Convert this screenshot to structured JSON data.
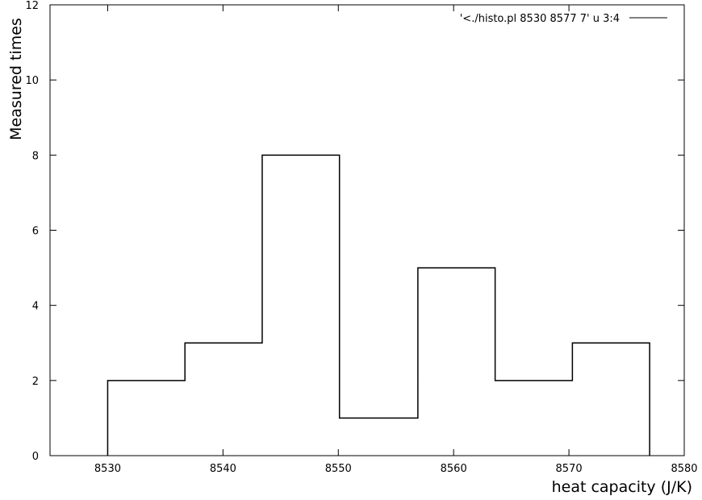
{
  "chart_data": {
    "type": "histogram",
    "xlabel": "heat capacity (J/K)",
    "ylabel": "Measured times",
    "xlim": [
      8525,
      8580
    ],
    "ylim": [
      0,
      12
    ],
    "x_ticks": [
      "8530",
      "8540",
      "8550",
      "8560",
      "8570",
      "8580"
    ],
    "y_ticks": [
      "0",
      "2",
      "4",
      "6",
      "8",
      "10",
      "12"
    ],
    "legend": {
      "label": "'<./histo.pl 8530 8577 7' u 3:4",
      "position": "top-right"
    },
    "series": [
      {
        "name": "'<./histo.pl 8530 8577 7' u 3:4",
        "bin_edges": [
          8530,
          8536.7,
          8543.4,
          8550.1,
          8556.9,
          8563.6,
          8570.3,
          8577
        ],
        "values": [
          2,
          3,
          8,
          1,
          5,
          2,
          3
        ]
      }
    ],
    "grid": false
  }
}
